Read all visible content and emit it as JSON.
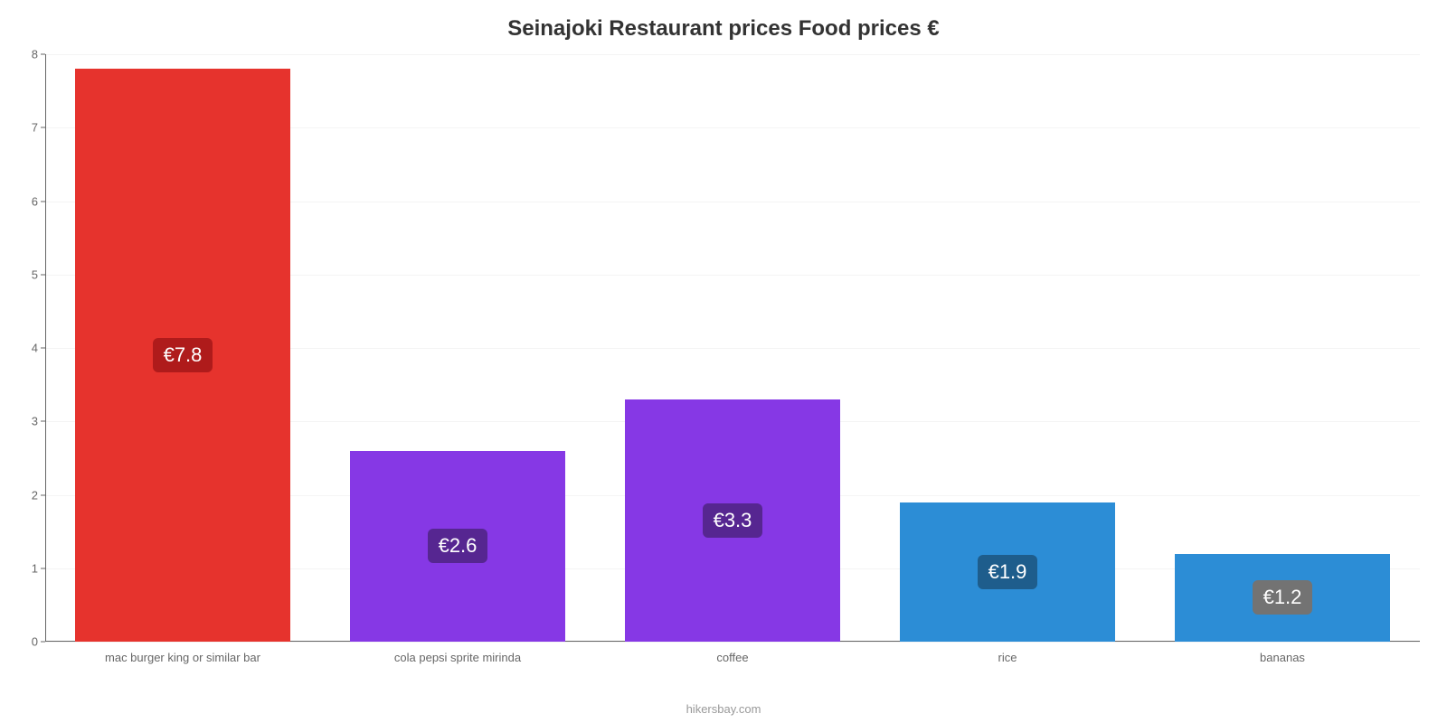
{
  "chart": {
    "type": "bar",
    "title": "Seinajoki Restaurant prices Food prices €",
    "title_fontsize": 24,
    "title_color": "#333333",
    "caption": "hikersbay.com",
    "caption_color": "#999999",
    "background_color": "#ffffff",
    "grid_color": "#f4f4f4",
    "axis_color": "#666666",
    "label_fontsize": 13,
    "value_fontsize": 22,
    "value_label_prefix": "€",
    "ylim": [
      0,
      8
    ],
    "ytick_step": 1,
    "bar_width_pct": 78,
    "categories": [
      "mac burger king or similar bar",
      "cola pepsi sprite mirinda",
      "coffee",
      "rice",
      "bananas"
    ],
    "values": [
      7.8,
      2.6,
      3.3,
      1.9,
      1.2
    ],
    "bar_colors": [
      "#e6332d",
      "#8638e5",
      "#8638e5",
      "#2c8dd6",
      "#2c8dd6"
    ],
    "badge_colors": [
      "#af1b1b",
      "#562691",
      "#562691",
      "#1e5d8c",
      "#737373"
    ]
  }
}
